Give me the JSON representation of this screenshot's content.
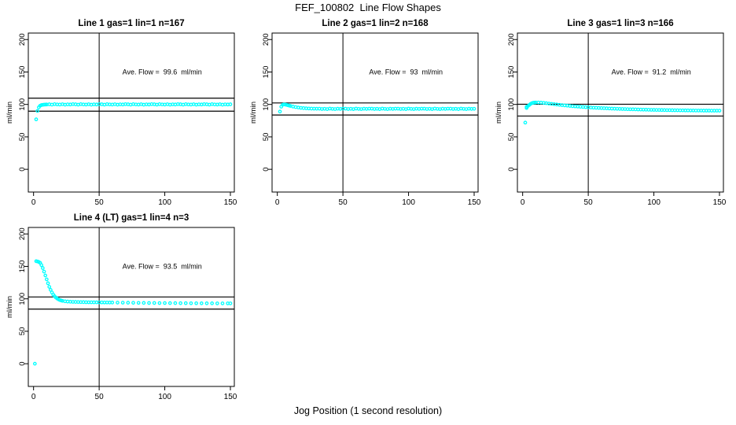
{
  "figure": {
    "title": "FEF_100802  Line Flow Shapes",
    "xlabel": "Jog Position (1 second resolution)",
    "background": "#ffffff"
  },
  "colors": {
    "points": "#00ffff",
    "axis": "#000000",
    "text": "#000000"
  },
  "axis": {
    "ylabel": "ml/min",
    "yticks": [
      0,
      50,
      100,
      150,
      200
    ],
    "xticks": [
      0,
      50,
      100,
      150
    ],
    "ylim": [
      -35,
      210
    ],
    "xlim": [
      -4,
      153
    ],
    "grid": false
  },
  "chart_data": [
    {
      "type": "scatter",
      "title": "Line 1 gas=1 lin=1 n=167",
      "n": 167,
      "avg_flow": 99.6,
      "avg_flow_label": "Ave. Flow =  99.6  ml/min",
      "ref_hlines": [
        109.6,
        89.6
      ],
      "ref_vline": 50,
      "points": [
        [
          2,
          77
        ],
        [
          3,
          90
        ],
        [
          4,
          95.5
        ],
        [
          5,
          98
        ],
        [
          6,
          99
        ],
        [
          7,
          99.4
        ],
        [
          8,
          99.7
        ],
        [
          9,
          99.8
        ],
        [
          10,
          99.9
        ],
        [
          12,
          100.2
        ],
        [
          14,
          99.7
        ],
        [
          16,
          100.4
        ],
        [
          18,
          100
        ],
        [
          20,
          99.8
        ],
        [
          22,
          100.3
        ],
        [
          24,
          99.6
        ],
        [
          26,
          100.1
        ],
        [
          28,
          99.9
        ],
        [
          30,
          100.4
        ],
        [
          32,
          100.2
        ],
        [
          34,
          99.7
        ],
        [
          36,
          100.4
        ],
        [
          38,
          100
        ],
        [
          40,
          99.8
        ],
        [
          42,
          100.3
        ],
        [
          44,
          99.6
        ],
        [
          46,
          100.1
        ],
        [
          48,
          99.9
        ],
        [
          50,
          100.4
        ],
        [
          52,
          100.2
        ],
        [
          54,
          99.7
        ],
        [
          56,
          100.4
        ],
        [
          58,
          100
        ],
        [
          60,
          99.8
        ],
        [
          62,
          100.3
        ],
        [
          64,
          99.6
        ],
        [
          66,
          100.1
        ],
        [
          68,
          99.9
        ],
        [
          70,
          100.4
        ],
        [
          72,
          100.2
        ],
        [
          74,
          99.7
        ],
        [
          76,
          100.4
        ],
        [
          78,
          100
        ],
        [
          80,
          99.8
        ],
        [
          82,
          100.3
        ],
        [
          84,
          99.6
        ],
        [
          86,
          100.1
        ],
        [
          88,
          99.9
        ],
        [
          90,
          100.4
        ],
        [
          92,
          100.2
        ],
        [
          94,
          99.7
        ],
        [
          96,
          100.4
        ],
        [
          98,
          100
        ],
        [
          100,
          99.8
        ],
        [
          102,
          100.3
        ],
        [
          104,
          99.6
        ],
        [
          106,
          100.1
        ],
        [
          108,
          99.9
        ],
        [
          110,
          100.4
        ],
        [
          112,
          100.2
        ],
        [
          114,
          99.7
        ],
        [
          116,
          100.4
        ],
        [
          118,
          100
        ],
        [
          120,
          99.8
        ],
        [
          122,
          100.3
        ],
        [
          124,
          99.6
        ],
        [
          126,
          100.1
        ],
        [
          128,
          99.9
        ],
        [
          130,
          100.4
        ],
        [
          132,
          100.2
        ],
        [
          134,
          99.7
        ],
        [
          136,
          100.4
        ],
        [
          138,
          100
        ],
        [
          140,
          99.8
        ],
        [
          142,
          100.3
        ],
        [
          144,
          99.6
        ],
        [
          146,
          100.1
        ],
        [
          148,
          99.9
        ],
        [
          150,
          100.2
        ]
      ]
    },
    {
      "type": "scatter",
      "title": "Line 2 gas=1 lin=2 n=168",
      "n": 168,
      "avg_flow": 93,
      "avg_flow_label": "Ave. Flow =  93  ml/min",
      "ref_hlines": [
        102.3,
        83.7
      ],
      "ref_vline": 50,
      "points": [
        [
          2,
          89
        ],
        [
          3,
          96.5
        ],
        [
          4,
          99.3
        ],
        [
          5,
          100
        ],
        [
          6,
          99.8
        ],
        [
          7,
          99.3
        ],
        [
          8,
          98.8
        ],
        [
          9,
          98.2
        ],
        [
          10,
          97.7
        ],
        [
          12,
          96.7
        ],
        [
          14,
          95.9
        ],
        [
          16,
          95.2
        ],
        [
          18,
          94.7
        ],
        [
          20,
          94.3
        ],
        [
          22,
          94
        ],
        [
          24,
          93.8
        ],
        [
          26,
          93.6
        ],
        [
          28,
          93.5
        ],
        [
          30,
          93.4
        ],
        [
          32,
          93.5
        ],
        [
          34,
          93
        ],
        [
          36,
          93.3
        ],
        [
          38,
          92.8
        ],
        [
          40,
          93.6
        ],
        [
          42,
          93.2
        ],
        [
          44,
          92.9
        ],
        [
          46,
          93.4
        ],
        [
          48,
          93.1
        ],
        [
          50,
          93.5
        ],
        [
          52,
          93.5
        ],
        [
          54,
          93
        ],
        [
          56,
          93.3
        ],
        [
          58,
          92.8
        ],
        [
          60,
          93.6
        ],
        [
          62,
          93.2
        ],
        [
          64,
          92.9
        ],
        [
          66,
          93.4
        ],
        [
          68,
          93.1
        ],
        [
          70,
          93.5
        ],
        [
          72,
          93.5
        ],
        [
          74,
          93
        ],
        [
          76,
          93.3
        ],
        [
          78,
          92.8
        ],
        [
          80,
          93.6
        ],
        [
          82,
          93.2
        ],
        [
          84,
          92.9
        ],
        [
          86,
          93.4
        ],
        [
          88,
          93.1
        ],
        [
          90,
          93.5
        ],
        [
          92,
          93.5
        ],
        [
          94,
          93
        ],
        [
          96,
          93.3
        ],
        [
          98,
          92.8
        ],
        [
          100,
          93.6
        ],
        [
          102,
          93.2
        ],
        [
          104,
          92.9
        ],
        [
          106,
          93.4
        ],
        [
          108,
          93.1
        ],
        [
          110,
          93.5
        ],
        [
          112,
          93.5
        ],
        [
          114,
          93
        ],
        [
          116,
          93.3
        ],
        [
          118,
          92.8
        ],
        [
          120,
          93.6
        ],
        [
          122,
          93.2
        ],
        [
          124,
          92.9
        ],
        [
          126,
          93.4
        ],
        [
          128,
          93.1
        ],
        [
          130,
          93.5
        ],
        [
          132,
          93.5
        ],
        [
          134,
          93
        ],
        [
          136,
          93.3
        ],
        [
          138,
          92.8
        ],
        [
          140,
          93.6
        ],
        [
          142,
          93.2
        ],
        [
          144,
          92.9
        ],
        [
          146,
          93.4
        ],
        [
          148,
          93.1
        ],
        [
          150,
          93.3
        ]
      ]
    },
    {
      "type": "scatter",
      "title": "Line 3 gas=1 lin=3 n=166",
      "n": 166,
      "avg_flow": 91.2,
      "avg_flow_label": "Ave. Flow =  91.2  ml/min",
      "ref_hlines": [
        100.3,
        82.1
      ],
      "ref_vline": 50,
      "points": [
        [
          2,
          72
        ],
        [
          3,
          94.5
        ],
        [
          3,
          96.3
        ],
        [
          4,
          97.5
        ],
        [
          5,
          99
        ],
        [
          6,
          100.8
        ],
        [
          7,
          101.9
        ],
        [
          8,
          102.5
        ],
        [
          9,
          102.8
        ],
        [
          10,
          103
        ],
        [
          12,
          103
        ],
        [
          14,
          102.8
        ],
        [
          16,
          102.4
        ],
        [
          18,
          101.9
        ],
        [
          20,
          101.4
        ],
        [
          22,
          100.9
        ],
        [
          24,
          100.4
        ],
        [
          26,
          99.9
        ],
        [
          28,
          99.4
        ],
        [
          30,
          98.9
        ],
        [
          32,
          98.5
        ],
        [
          34,
          98.1
        ],
        [
          36,
          97.7
        ],
        [
          38,
          97.3
        ],
        [
          40,
          97
        ],
        [
          42,
          96.7
        ],
        [
          44,
          96.4
        ],
        [
          46,
          96.1
        ],
        [
          48,
          95.8
        ],
        [
          50,
          95.5
        ],
        [
          52,
          95.3
        ],
        [
          54,
          95
        ],
        [
          56,
          94.8
        ],
        [
          58,
          94.6
        ],
        [
          60,
          94.4
        ],
        [
          62,
          94.2
        ],
        [
          64,
          94
        ],
        [
          66,
          93.8
        ],
        [
          68,
          93.6
        ],
        [
          70,
          93.4
        ],
        [
          72,
          93.3
        ],
        [
          74,
          93.1
        ],
        [
          76,
          93
        ],
        [
          78,
          92.9
        ],
        [
          80,
          92.7
        ],
        [
          82,
          92.6
        ],
        [
          84,
          92.5
        ],
        [
          86,
          92.4
        ],
        [
          88,
          92.2
        ],
        [
          90,
          92.1
        ],
        [
          92,
          92
        ],
        [
          94,
          91.9
        ],
        [
          96,
          91.8
        ],
        [
          98,
          91.7
        ],
        [
          100,
          91.6
        ],
        [
          102,
          91.5
        ],
        [
          104,
          91.5
        ],
        [
          106,
          91.4
        ],
        [
          108,
          91.3
        ],
        [
          110,
          91.2
        ],
        [
          112,
          91.2
        ],
        [
          114,
          91.1
        ],
        [
          116,
          91
        ],
        [
          118,
          91
        ],
        [
          120,
          90.9
        ],
        [
          122,
          90.9
        ],
        [
          124,
          90.8
        ],
        [
          126,
          90.8
        ],
        [
          128,
          90.7
        ],
        [
          130,
          90.7
        ],
        [
          132,
          90.6
        ],
        [
          134,
          90.6
        ],
        [
          136,
          90.6
        ],
        [
          138,
          90.5
        ],
        [
          140,
          90.5
        ],
        [
          142,
          90.5
        ],
        [
          144,
          90.4
        ],
        [
          146,
          90.4
        ],
        [
          148,
          90.4
        ],
        [
          150,
          90.4
        ]
      ]
    },
    {
      "type": "scatter",
      "title": "Line 4 (LT) gas=1 lin=4 n=3",
      "n": 3,
      "avg_flow": 93.5,
      "avg_flow_label": "Ave. Flow =  93.5  ml/min",
      "ref_hlines": [
        102.9,
        84.2
      ],
      "ref_vline": 50,
      "points": [
        [
          1,
          0
        ],
        [
          2,
          158
        ],
        [
          3,
          157.6
        ],
        [
          4,
          156.8
        ],
        [
          5,
          155.5
        ],
        [
          6,
          152
        ],
        [
          7,
          147.5
        ],
        [
          8,
          142
        ],
        [
          9,
          136
        ],
        [
          10,
          130
        ],
        [
          11,
          124
        ],
        [
          12,
          118.5
        ],
        [
          13,
          113.8
        ],
        [
          14,
          109.8
        ],
        [
          15,
          106.5
        ],
        [
          16,
          104
        ],
        [
          17,
          102
        ],
        [
          18,
          100.5
        ],
        [
          19,
          99.2
        ],
        [
          20,
          98.2
        ],
        [
          21,
          97.5
        ],
        [
          22,
          96.9
        ],
        [
          24,
          96.2
        ],
        [
          26,
          95.8
        ],
        [
          28,
          95.5
        ],
        [
          30,
          95.3
        ],
        [
          32,
          95.2
        ],
        [
          34,
          95.1
        ],
        [
          36,
          95
        ],
        [
          38,
          94.9
        ],
        [
          40,
          94.8
        ],
        [
          42,
          94.7
        ],
        [
          44,
          94.7
        ],
        [
          46,
          94.6
        ],
        [
          48,
          94.6
        ],
        [
          50,
          94.5
        ],
        [
          52,
          94.5
        ],
        [
          54,
          94.4
        ],
        [
          56,
          94.4
        ],
        [
          58,
          94.3
        ],
        [
          60,
          94.3
        ],
        [
          64,
          94.2
        ],
        [
          68,
          94.1
        ],
        [
          72,
          94
        ],
        [
          76,
          93.9
        ],
        [
          80,
          93.8
        ],
        [
          84,
          93.7
        ],
        [
          88,
          93.6
        ],
        [
          92,
          93.6
        ],
        [
          96,
          93.5
        ],
        [
          100,
          93.5
        ],
        [
          104,
          93.4
        ],
        [
          108,
          93.4
        ],
        [
          112,
          93.3
        ],
        [
          116,
          93.3
        ],
        [
          120,
          93.2
        ],
        [
          124,
          93.2
        ],
        [
          128,
          93.1
        ],
        [
          132,
          93.1
        ],
        [
          136,
          93.1
        ],
        [
          140,
          93
        ],
        [
          144,
          93
        ],
        [
          148,
          93
        ],
        [
          150,
          93
        ]
      ]
    }
  ]
}
